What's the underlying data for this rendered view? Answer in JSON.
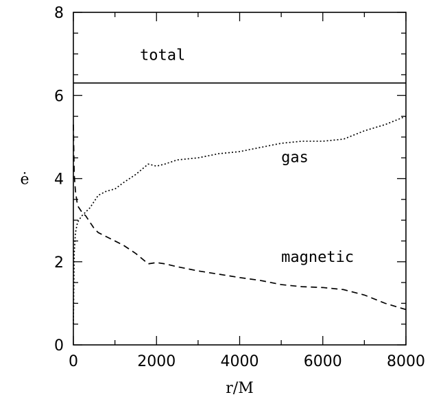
{
  "chart_data": {
    "type": "line",
    "title": "",
    "xlabel": "r/M",
    "ylabel": "ė",
    "xlim": [
      0,
      8000
    ],
    "ylim": [
      0,
      8
    ],
    "x_ticks": [
      "0",
      "2000",
      "4000",
      "6000",
      "8000"
    ],
    "y_ticks": [
      "0",
      "2",
      "4",
      "6",
      "8"
    ],
    "grid": false,
    "legend": "none",
    "annotations": [
      {
        "text": "total",
        "x": 1600,
        "y": 6.85
      },
      {
        "text": "gas",
        "x": 5000,
        "y": 4.4
      },
      {
        "text": "magnetic",
        "x": 5000,
        "y": 2.0
      }
    ],
    "series": [
      {
        "style": "solid",
        "x": [
          0,
          8000
        ],
        "y": [
          6.3,
          6.3
        ]
      },
      {
        "style": "dotted",
        "x": [
          0,
          20,
          50,
          100,
          200,
          300,
          400,
          500,
          600,
          800,
          1000,
          1200,
          1500,
          1800,
          2000,
          2200,
          2500,
          3000,
          3500,
          4000,
          4500,
          5000,
          5500,
          6000,
          6500,
          7000,
          7500,
          8000
        ],
        "y": [
          0.5,
          2.2,
          2.7,
          2.95,
          3.1,
          3.2,
          3.3,
          3.45,
          3.6,
          3.7,
          3.75,
          3.9,
          4.1,
          4.35,
          4.3,
          4.35,
          4.45,
          4.5,
          4.6,
          4.65,
          4.75,
          4.85,
          4.9,
          4.9,
          4.95,
          5.15,
          5.3,
          5.5
        ]
      },
      {
        "style": "dashed",
        "x": [
          0,
          20,
          50,
          100,
          200,
          300,
          400,
          500,
          600,
          800,
          1000,
          1200,
          1500,
          1800,
          2000,
          2200,
          2500,
          3000,
          3500,
          4000,
          4500,
          5000,
          5500,
          6000,
          6500,
          7000,
          7500,
          8000
        ],
        "y": [
          5.3,
          4.1,
          3.7,
          3.35,
          3.2,
          3.1,
          2.95,
          2.8,
          2.7,
          2.6,
          2.5,
          2.4,
          2.2,
          1.95,
          1.98,
          1.95,
          1.88,
          1.78,
          1.7,
          1.62,
          1.55,
          1.45,
          1.4,
          1.38,
          1.33,
          1.2,
          1.0,
          0.85
        ]
      }
    ]
  }
}
